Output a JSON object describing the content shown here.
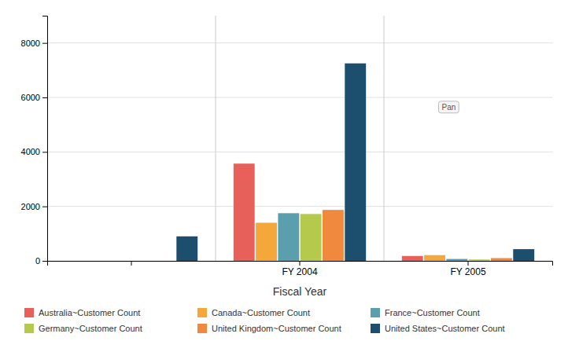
{
  "chart_data": {
    "type": "bar",
    "xlabel": "Fiscal Year",
    "categories": [
      null,
      "FY 2004",
      "FY 2005"
    ],
    "series": [
      {
        "name": "Australia~Customer Count",
        "color": "#E8605A",
        "values": [
          null,
          3570,
          180
        ]
      },
      {
        "name": "Canada~Customer Count",
        "color": "#F4A83A",
        "values": [
          null,
          1400,
          210
        ]
      },
      {
        "name": "France~Customer Count",
        "color": "#5B9EAD",
        "values": [
          null,
          1750,
          70
        ]
      },
      {
        "name": "Germany~Customer Count",
        "color": "#B5C94C",
        "values": [
          null,
          1720,
          50
        ]
      },
      {
        "name": "United Kingdom~Customer Count",
        "color": "#F0883E",
        "values": [
          null,
          1870,
          100
        ]
      },
      {
        "name": "United States~Customer Count",
        "color": "#1C4E6E",
        "values": [
          900,
          7250,
          430
        ]
      }
    ],
    "ylim": [
      0,
      9000
    ],
    "yticks": [
      0,
      2000,
      4000,
      6000,
      8000
    ],
    "grid": true,
    "legend": "bottom",
    "annotations": [
      "Pan"
    ]
  }
}
